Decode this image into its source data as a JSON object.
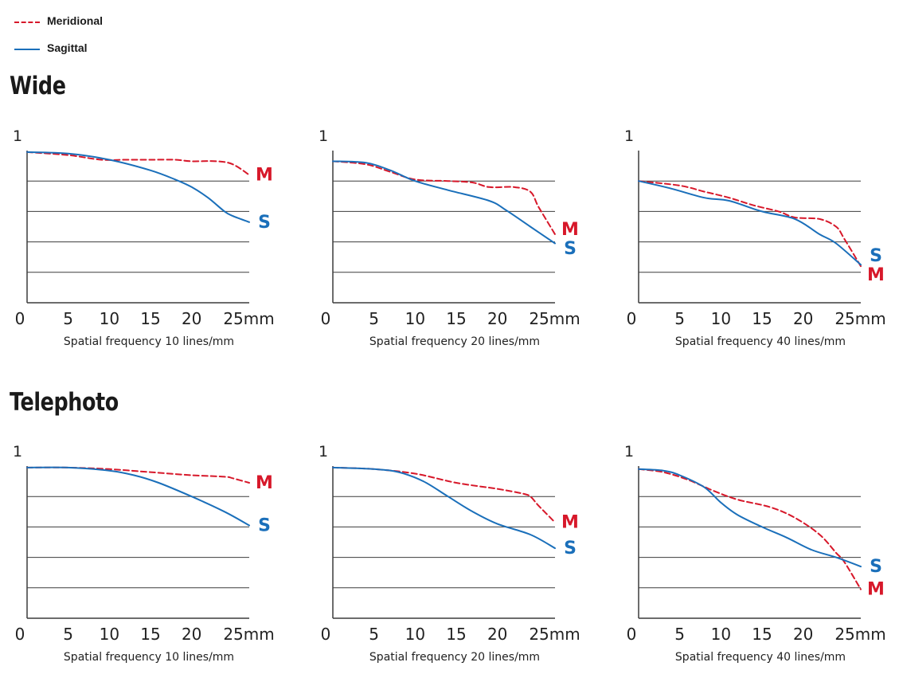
{
  "legend": {
    "meridional_label": "Meridional",
    "sagittal_label": "Sagittal"
  },
  "sections": {
    "wide_title": "Wide",
    "telephoto_title": "Telephoto"
  },
  "colors": {
    "meridional": "#d7182a",
    "sagittal": "#1a6fba",
    "grid": "#3c3c3c",
    "axis": "#3c3c3c"
  },
  "chart_data": [
    {
      "type": "line",
      "section": "Wide",
      "xlabel": "Spatial frequency 10 lines/mm",
      "ylabel": "",
      "xlim": [
        0,
        27
      ],
      "ylim": [
        0,
        1
      ],
      "x_ticks": [
        "0",
        "5",
        "10",
        "15",
        "20",
        "25mm"
      ],
      "y_tick": "1",
      "grid": "horizontal",
      "end_labels": {
        "M": "M",
        "S": "S"
      },
      "series": [
        {
          "name": "M",
          "style": "dashed",
          "x": [
            0,
            5,
            9,
            12,
            15,
            18,
            20,
            23,
            25,
            27
          ],
          "y": [
            0.99,
            0.97,
            0.94,
            0.94,
            0.94,
            0.94,
            0.93,
            0.93,
            0.91,
            0.84
          ]
        },
        {
          "name": "S",
          "style": "solid",
          "x": [
            0,
            5,
            10,
            15,
            18,
            20,
            22,
            24,
            25,
            27
          ],
          "y": [
            0.99,
            0.98,
            0.94,
            0.87,
            0.81,
            0.76,
            0.69,
            0.6,
            0.57,
            0.53
          ]
        }
      ]
    },
    {
      "type": "line",
      "section": "Wide",
      "xlabel": "Spatial frequency 20 lines/mm",
      "ylabel": "",
      "xlim": [
        0,
        27
      ],
      "ylim": [
        0,
        1
      ],
      "x_ticks": [
        "0",
        "5",
        "10",
        "15",
        "20",
        "25mm"
      ],
      "y_tick": "1",
      "grid": "horizontal",
      "end_labels": {
        "M": "M",
        "S": "S"
      },
      "series": [
        {
          "name": "M",
          "style": "dashed",
          "x": [
            0,
            4,
            7,
            10,
            14,
            17,
            19,
            22,
            24,
            25,
            27
          ],
          "y": [
            0.93,
            0.91,
            0.86,
            0.81,
            0.8,
            0.79,
            0.76,
            0.76,
            0.73,
            0.63,
            0.45
          ]
        },
        {
          "name": "S",
          "style": "solid",
          "x": [
            0,
            4,
            7,
            10,
            14,
            19,
            21,
            24,
            27
          ],
          "y": [
            0.93,
            0.92,
            0.87,
            0.8,
            0.74,
            0.67,
            0.61,
            0.5,
            0.39
          ]
        }
      ]
    },
    {
      "type": "line",
      "section": "Wide",
      "xlabel": "Spatial frequency 40 lines/mm",
      "ylabel": "",
      "xlim": [
        0,
        27
      ],
      "ylim": [
        0,
        1
      ],
      "x_ticks": [
        "0",
        "5",
        "10",
        "15",
        "20",
        "25mm"
      ],
      "y_tick": "1",
      "grid": "horizontal",
      "end_labels": {
        "M": "M",
        "S": "S"
      },
      "series": [
        {
          "name": "M",
          "style": "dashed",
          "x": [
            0,
            5,
            8,
            11,
            14,
            17,
            19,
            22,
            24,
            25,
            27
          ],
          "y": [
            0.8,
            0.77,
            0.73,
            0.69,
            0.64,
            0.6,
            0.56,
            0.55,
            0.5,
            0.42,
            0.24
          ]
        },
        {
          "name": "S",
          "style": "solid",
          "x": [
            0,
            4,
            8,
            11,
            15,
            19,
            22,
            24,
            27
          ],
          "y": [
            0.8,
            0.75,
            0.69,
            0.67,
            0.6,
            0.55,
            0.45,
            0.39,
            0.25
          ]
        }
      ]
    },
    {
      "type": "line",
      "section": "Telephoto",
      "xlabel": "Spatial frequency 10 lines/mm",
      "ylabel": "",
      "xlim": [
        0,
        27
      ],
      "ylim": [
        0,
        1
      ],
      "x_ticks": [
        "0",
        "5",
        "10",
        "15",
        "20",
        "25mm"
      ],
      "y_tick": "1",
      "grid": "horizontal",
      "end_labels": {
        "M": "M",
        "S": "S"
      },
      "series": [
        {
          "name": "M",
          "style": "dashed",
          "x": [
            0,
            5,
            10,
            15,
            20,
            24,
            25,
            27
          ],
          "y": [
            0.99,
            0.99,
            0.98,
            0.96,
            0.94,
            0.93,
            0.92,
            0.89
          ]
        },
        {
          "name": "S",
          "style": "solid",
          "x": [
            0,
            5,
            10,
            13,
            16,
            20,
            24,
            27
          ],
          "y": [
            0.99,
            0.99,
            0.97,
            0.94,
            0.89,
            0.8,
            0.7,
            0.61
          ]
        }
      ]
    },
    {
      "type": "line",
      "section": "Telephoto",
      "xlabel": "Spatial frequency 20 lines/mm",
      "ylabel": "",
      "xlim": [
        0,
        27
      ],
      "ylim": [
        0,
        1
      ],
      "x_ticks": [
        "0",
        "5",
        "10",
        "15",
        "20",
        "25mm"
      ],
      "y_tick": "1",
      "grid": "horizontal",
      "end_labels": {
        "M": "M",
        "S": "S"
      },
      "series": [
        {
          "name": "M",
          "style": "dashed",
          "x": [
            0,
            5,
            10,
            15,
            20,
            23,
            24,
            25,
            27
          ],
          "y": [
            0.99,
            0.98,
            0.95,
            0.89,
            0.85,
            0.82,
            0.8,
            0.74,
            0.63
          ]
        },
        {
          "name": "S",
          "style": "solid",
          "x": [
            0,
            5,
            8,
            11,
            14,
            17,
            20,
            24,
            27
          ],
          "y": [
            0.99,
            0.98,
            0.96,
            0.9,
            0.8,
            0.7,
            0.62,
            0.55,
            0.46
          ]
        }
      ]
    },
    {
      "type": "line",
      "section": "Telephoto",
      "xlabel": "Spatial frequency 40 lines/mm",
      "ylabel": "",
      "xlim": [
        0,
        27
      ],
      "ylim": [
        0,
        1
      ],
      "x_ticks": [
        "0",
        "5",
        "10",
        "15",
        "20",
        "25mm"
      ],
      "y_tick": "1",
      "grid": "horizontal",
      "end_labels": {
        "M": "M",
        "S": "S"
      },
      "series": [
        {
          "name": "M",
          "style": "dashed",
          "x": [
            0,
            3,
            6,
            9,
            12,
            16,
            19,
            22,
            24,
            25,
            27
          ],
          "y": [
            0.98,
            0.96,
            0.91,
            0.84,
            0.78,
            0.73,
            0.66,
            0.55,
            0.43,
            0.37,
            0.19
          ]
        },
        {
          "name": "S",
          "style": "solid",
          "x": [
            0,
            3,
            5,
            8,
            10,
            12,
            15,
            18,
            21,
            24,
            27
          ],
          "y": [
            0.98,
            0.97,
            0.94,
            0.86,
            0.76,
            0.68,
            0.6,
            0.53,
            0.45,
            0.4,
            0.34
          ]
        }
      ]
    }
  ]
}
